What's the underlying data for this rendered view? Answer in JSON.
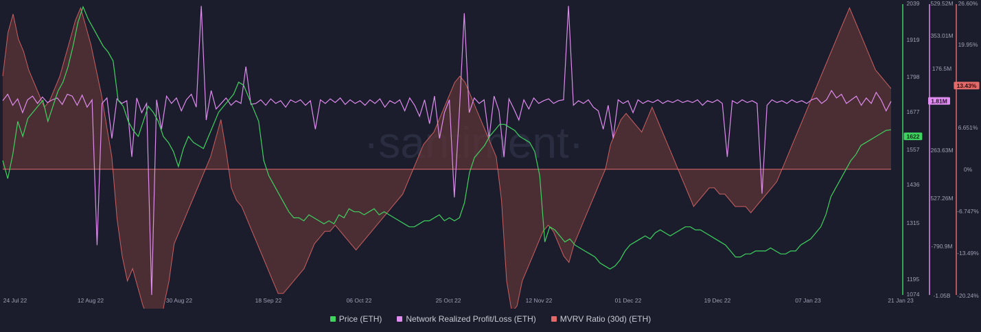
{
  "colors": {
    "background": "#1b1d2c",
    "price": "#3ed35f",
    "profit_loss": "#e08cf0",
    "mvrv": "#e46a6a",
    "mvrv_fill": "#5c3437",
    "axis_text": "#9ea1b3"
  },
  "watermark": "·santiment·",
  "legend": [
    {
      "label": "Price (ETH)",
      "color": "#3ed35f"
    },
    {
      "label": "Network Realized Profit/Loss (ETH)",
      "color": "#e08cf0"
    },
    {
      "label": "MVRV Ratio (30d) (ETH)",
      "color": "#e46a6a"
    }
  ],
  "chart_data": {
    "type": "line",
    "x_labels": [
      "24 Jul 22",
      "12 Aug 22",
      "30 Aug 22",
      "18 Sep 22",
      "06 Oct 22",
      "25 Oct 22",
      "12 Nov 22",
      "01 Dec 22",
      "19 Dec 22",
      "07 Jan 23",
      "21 Jan 23"
    ],
    "price_axis": {
      "ticks": [
        "2039",
        "1919",
        "1798",
        "1677",
        "1557",
        "1436",
        "1315",
        "1195",
        "1074"
      ],
      "min": 1074,
      "max": 2039
    },
    "profit_loss_axis": {
      "ticks": [
        "529.52M",
        "353.01M",
        "176.5M",
        "263.63M",
        "527.26M",
        "-790.9M",
        "-1.05B"
      ],
      "min": -1050000000,
      "max": 529520000
    },
    "mvrv_axis": {
      "ticks": [
        "26.60%",
        "19.95%",
        "13.43%",
        "6.651%",
        "0%",
        "-6.747%",
        "-13.49%",
        "-20.24%"
      ],
      "min": -20.24,
      "max": 26.6
    },
    "current": {
      "price": "1622",
      "profit_loss": "1.81M",
      "mvrv": "13.43%"
    },
    "series": [
      {
        "name": "Price (ETH)",
        "axis": "price",
        "values": [
          1520,
          1460,
          1540,
          1650,
          1600,
          1660,
          1680,
          1700,
          1720,
          1650,
          1700,
          1750,
          1780,
          1830,
          1900,
          1980,
          2030,
          1990,
          1960,
          1930,
          1900,
          1880,
          1850,
          1720,
          1700,
          1650,
          1620,
          1600,
          1650,
          1700,
          1680,
          1650,
          1600,
          1580,
          1550,
          1500,
          1560,
          1600,
          1580,
          1570,
          1560,
          1600,
          1640,
          1680,
          1700,
          1720,
          1740,
          1780,
          1770,
          1730,
          1690,
          1650,
          1520,
          1470,
          1440,
          1410,
          1380,
          1350,
          1330,
          1330,
          1320,
          1340,
          1330,
          1320,
          1310,
          1320,
          1310,
          1340,
          1330,
          1360,
          1350,
          1350,
          1340,
          1350,
          1360,
          1340,
          1350,
          1340,
          1330,
          1320,
          1310,
          1300,
          1300,
          1310,
          1320,
          1320,
          1330,
          1340,
          1320,
          1330,
          1320,
          1330,
          1380,
          1480,
          1530,
          1550,
          1570,
          1600,
          1620,
          1640,
          1640,
          1630,
          1620,
          1600,
          1590,
          1580,
          1550,
          1470,
          1250,
          1300,
          1290,
          1270,
          1250,
          1260,
          1240,
          1230,
          1220,
          1210,
          1200,
          1180,
          1170,
          1160,
          1170,
          1190,
          1220,
          1240,
          1250,
          1260,
          1270,
          1260,
          1280,
          1290,
          1280,
          1270,
          1280,
          1290,
          1300,
          1300,
          1290,
          1290,
          1280,
          1270,
          1260,
          1250,
          1240,
          1220,
          1200,
          1200,
          1210,
          1210,
          1220,
          1220,
          1220,
          1230,
          1220,
          1210,
          1210,
          1220,
          1220,
          1240,
          1250,
          1260,
          1280,
          1300,
          1340,
          1400,
          1430,
          1460,
          1490,
          1520,
          1540,
          1570,
          1580,
          1590,
          1600,
          1610,
          1620,
          1622
        ]
      },
      {
        "name": "Network Realized Profit/Loss (ETH)",
        "axis": "profit_loss",
        "values": [
          5000000,
          40000000,
          -20000000,
          15000000,
          -60000000,
          10000000,
          30000000,
          -10000000,
          25000000,
          -5000000,
          10000000,
          20000000,
          -15000000,
          40000000,
          30000000,
          -20000000,
          35000000,
          -30000000,
          10000000,
          -780000000,
          -10000000,
          20000000,
          -200000000,
          15000000,
          -10000000,
          5000000,
          -300000000,
          20000000,
          -60000000,
          -10000000,
          -1050000000,
          10000000,
          -150000000,
          30000000,
          -10000000,
          20000000,
          -50000000,
          10000000,
          40000000,
          -30000000,
          520000000,
          -100000000,
          60000000,
          -40000000,
          -10000000,
          20000000,
          -20000000,
          5000000,
          -10000000,
          190000000,
          -15000000,
          -10000000,
          10000000,
          -20000000,
          15000000,
          -10000000,
          5000000,
          -30000000,
          10000000,
          -5000000,
          10000000,
          -20000000,
          5000000,
          -150000000,
          10000000,
          -10000000,
          15000000,
          -5000000,
          20000000,
          -15000000,
          10000000,
          -10000000,
          5000000,
          -20000000,
          10000000,
          -10000000,
          15000000,
          -30000000,
          5000000,
          -10000000,
          10000000,
          -50000000,
          20000000,
          -20000000,
          -80000000,
          10000000,
          -120000000,
          30000000,
          -200000000,
          -60000000,
          10000000,
          -520000000,
          -60000000,
          480000000,
          -60000000,
          20000000,
          -10000000,
          10000000,
          -200000000,
          30000000,
          -50000000,
          -300000000,
          15000000,
          -40000000,
          -100000000,
          10000000,
          -40000000,
          20000000,
          -10000000,
          5000000,
          15000000,
          -10000000,
          5000000,
          10000000,
          520000000,
          -20000000,
          5000000,
          -10000000,
          10000000,
          -30000000,
          -50000000,
          -150000000,
          -20000000,
          -200000000,
          10000000,
          -10000000,
          5000000,
          -60000000,
          10000000,
          -10000000,
          5000000,
          -5000000,
          10000000,
          -10000000,
          5000000,
          -5000000,
          10000000,
          -5000000,
          5000000,
          -5000000,
          10000000,
          -20000000,
          5000000,
          -5000000,
          10000000,
          -10000000,
          -300000000,
          5000000,
          -10000000,
          10000000,
          -5000000,
          5000000,
          -10000000,
          -500000000,
          -20000000,
          10000000,
          -5000000,
          5000000,
          -10000000,
          10000000,
          -5000000,
          5000000,
          -10000000,
          10000000,
          20000000,
          -10000000,
          10000000,
          60000000,
          20000000,
          40000000,
          -10000000,
          10000000,
          30000000,
          -20000000,
          20000000,
          -10000000,
          50000000,
          10000000,
          -50000000,
          1810000
        ]
      },
      {
        "name": "MVRV Ratio (30d) (ETH)",
        "axis": "mvrv",
        "values": [
          15,
          22,
          25,
          21,
          19,
          16,
          14,
          12,
          10,
          11,
          13,
          15,
          18,
          21,
          24,
          26,
          23,
          20,
          16,
          12,
          7,
          2,
          -8,
          -14,
          -18,
          -16,
          -19,
          -22,
          -24,
          -26,
          -28,
          -22,
          -18,
          -12,
          -10,
          -8,
          -6,
          -4,
          -2,
          0,
          2,
          5,
          8,
          3,
          -3,
          -5,
          -6,
          -8,
          -10,
          -12,
          -14,
          -16,
          -18,
          -20,
          -20,
          -19,
          -18,
          -17,
          -16,
          -14,
          -12,
          -11,
          -10,
          -10,
          -9,
          -10,
          -11,
          -12,
          -13,
          -12,
          -11,
          -10,
          -9,
          -8,
          -7,
          -6,
          -5,
          -4,
          -2,
          0,
          2,
          4,
          5,
          6,
          8,
          10,
          12,
          14,
          15,
          14,
          12,
          10,
          8,
          6,
          4,
          2,
          -5,
          -18,
          -23,
          -22,
          -18,
          -16,
          -14,
          -12,
          -10,
          -9,
          -10,
          -12,
          -14,
          -15,
          -12,
          -10,
          -8,
          -6,
          -4,
          -2,
          0,
          4,
          6,
          8,
          9,
          8,
          7,
          6,
          8,
          10,
          8,
          6,
          4,
          2,
          0,
          -2,
          -4,
          -6,
          -5,
          -4,
          -3,
          -3,
          -4,
          -4,
          -5,
          -6,
          -6,
          -6,
          -7,
          -6,
          -5,
          -4,
          -3,
          -2,
          0,
          2,
          4,
          6,
          8,
          10,
          12,
          14,
          16,
          18,
          20,
          22,
          24,
          26,
          24,
          22,
          20,
          18,
          16,
          15,
          14,
          13
        ]
      }
    ],
    "grid": false,
    "legend_position": "bottom"
  }
}
